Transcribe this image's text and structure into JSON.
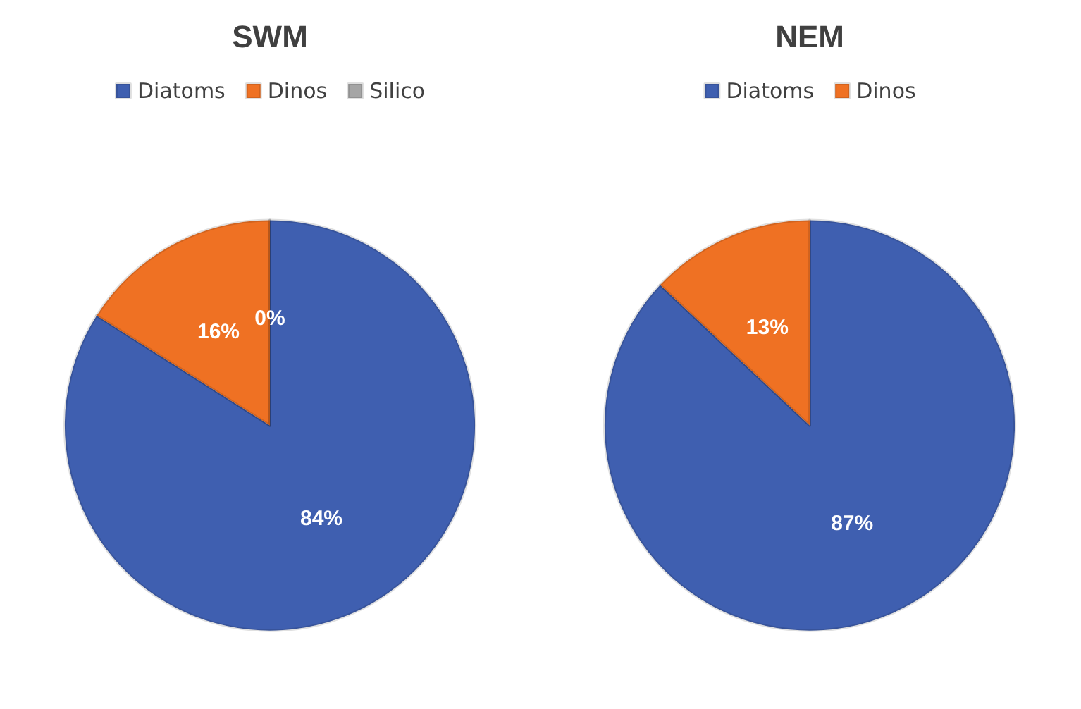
{
  "chart_data": [
    {
      "type": "pie",
      "title": "SWM",
      "categories": [
        "Diatoms",
        "Dinos",
        "Silico"
      ],
      "values": [
        84,
        16,
        0
      ],
      "colors": [
        "#3f5fb0",
        "#ef7123",
        "#a5a5a5"
      ],
      "value_labels": [
        "84%",
        "16%",
        "0%"
      ],
      "legend": "top"
    },
    {
      "type": "pie",
      "title": "NEM",
      "categories": [
        "Diatoms",
        "Dinos"
      ],
      "values": [
        87,
        13
      ],
      "colors": [
        "#3f5fb0",
        "#ef7123"
      ],
      "value_labels": [
        "87%",
        "13%"
      ],
      "legend": "top"
    }
  ]
}
